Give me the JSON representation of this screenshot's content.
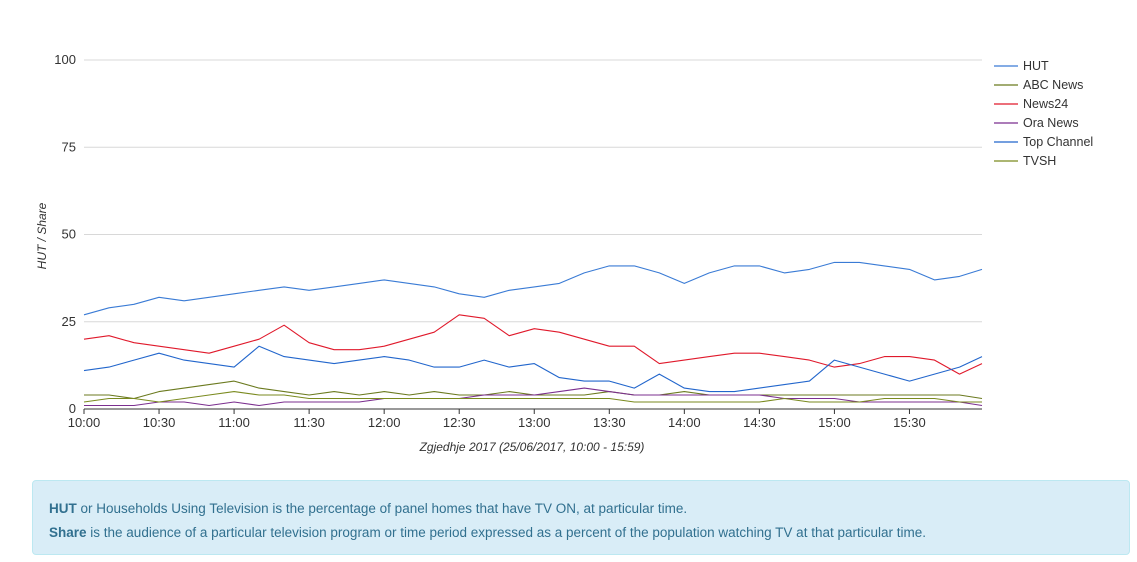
{
  "chart_data": {
    "type": "line",
    "title": "",
    "ylabel": "HUT / Share",
    "xlabel": "Zgjedhje 2017 (25/06/2017, 10:00 - 15:59)",
    "ylim": [
      0,
      100
    ],
    "yticks": [
      "0",
      "25",
      "50",
      "75",
      "100"
    ],
    "xticks": [
      "10:00",
      "10:30",
      "11:00",
      "11:30",
      "12:00",
      "12:30",
      "13:00",
      "13:30",
      "14:00",
      "14:30",
      "15:00",
      "15:30"
    ],
    "grid": "horizontal",
    "legend_position": "right",
    "x": [
      "10:00",
      "10:10",
      "10:20",
      "10:30",
      "10:40",
      "10:50",
      "11:00",
      "11:10",
      "11:20",
      "11:30",
      "11:40",
      "11:50",
      "12:00",
      "12:10",
      "12:20",
      "12:30",
      "12:40",
      "12:50",
      "13:00",
      "13:10",
      "13:20",
      "13:30",
      "13:40",
      "13:50",
      "14:00",
      "14:10",
      "14:20",
      "14:30",
      "14:40",
      "14:50",
      "15:00",
      "15:10",
      "15:20",
      "15:30",
      "15:40",
      "15:50",
      "15:59"
    ],
    "series": [
      {
        "name": "HUT",
        "color": "#3a7bd5",
        "values": [
          27,
          29,
          30,
          32,
          31,
          32,
          33,
          34,
          35,
          34,
          35,
          36,
          37,
          36,
          35,
          33,
          32,
          34,
          35,
          36,
          39,
          41,
          41,
          39,
          36,
          39,
          41,
          41,
          39,
          40,
          42,
          42,
          41,
          40,
          37,
          38,
          40
        ]
      },
      {
        "name": "ABC News",
        "color": "#6b7a1f",
        "values": [
          4,
          4,
          3,
          5,
          6,
          7,
          8,
          6,
          5,
          4,
          5,
          4,
          5,
          4,
          5,
          4,
          4,
          5,
          4,
          4,
          4,
          5,
          4,
          4,
          5,
          4,
          4,
          4,
          4,
          4,
          4,
          4,
          4,
          4,
          4,
          4,
          3
        ]
      },
      {
        "name": "News24",
        "color": "#e0192b",
        "values": [
          20,
          21,
          19,
          18,
          17,
          16,
          18,
          20,
          24,
          19,
          17,
          17,
          18,
          20,
          22,
          27,
          26,
          21,
          23,
          22,
          20,
          18,
          18,
          13,
          14,
          15,
          16,
          16,
          15,
          14,
          12,
          13,
          15,
          15,
          14,
          10,
          13
        ]
      },
      {
        "name": "Ora News",
        "color": "#7b2f8f",
        "values": [
          1,
          1,
          1,
          2,
          2,
          1,
          2,
          1,
          2,
          2,
          2,
          2,
          3,
          3,
          3,
          3,
          4,
          4,
          4,
          5,
          6,
          5,
          4,
          4,
          4,
          4,
          4,
          4,
          3,
          3,
          3,
          2,
          2,
          2,
          2,
          2,
          1
        ]
      },
      {
        "name": "Top Channel",
        "color": "#2266cc",
        "values": [
          11,
          12,
          14,
          16,
          14,
          13,
          12,
          18,
          15,
          14,
          13,
          14,
          15,
          14,
          12,
          12,
          14,
          12,
          13,
          9,
          8,
          8,
          6,
          10,
          6,
          5,
          5,
          6,
          7,
          8,
          14,
          12,
          10,
          8,
          10,
          12,
          15
        ]
      },
      {
        "name": "TVSH",
        "color": "#7a8a1f",
        "values": [
          2,
          3,
          3,
          2,
          3,
          4,
          5,
          4,
          4,
          3,
          3,
          3,
          3,
          3,
          3,
          3,
          3,
          3,
          3,
          3,
          3,
          3,
          2,
          2,
          2,
          2,
          2,
          2,
          3,
          2,
          2,
          2,
          3,
          3,
          3,
          2,
          2
        ]
      }
    ]
  },
  "info": {
    "hut_term": "HUT",
    "hut_text": " or Households Using Television is the percentage of panel homes that have TV ON, at particular time.",
    "share_term": "Share",
    "share_text": " is the audience of a particular television program or time period expressed as a percent of the population watching TV at that particular time."
  }
}
